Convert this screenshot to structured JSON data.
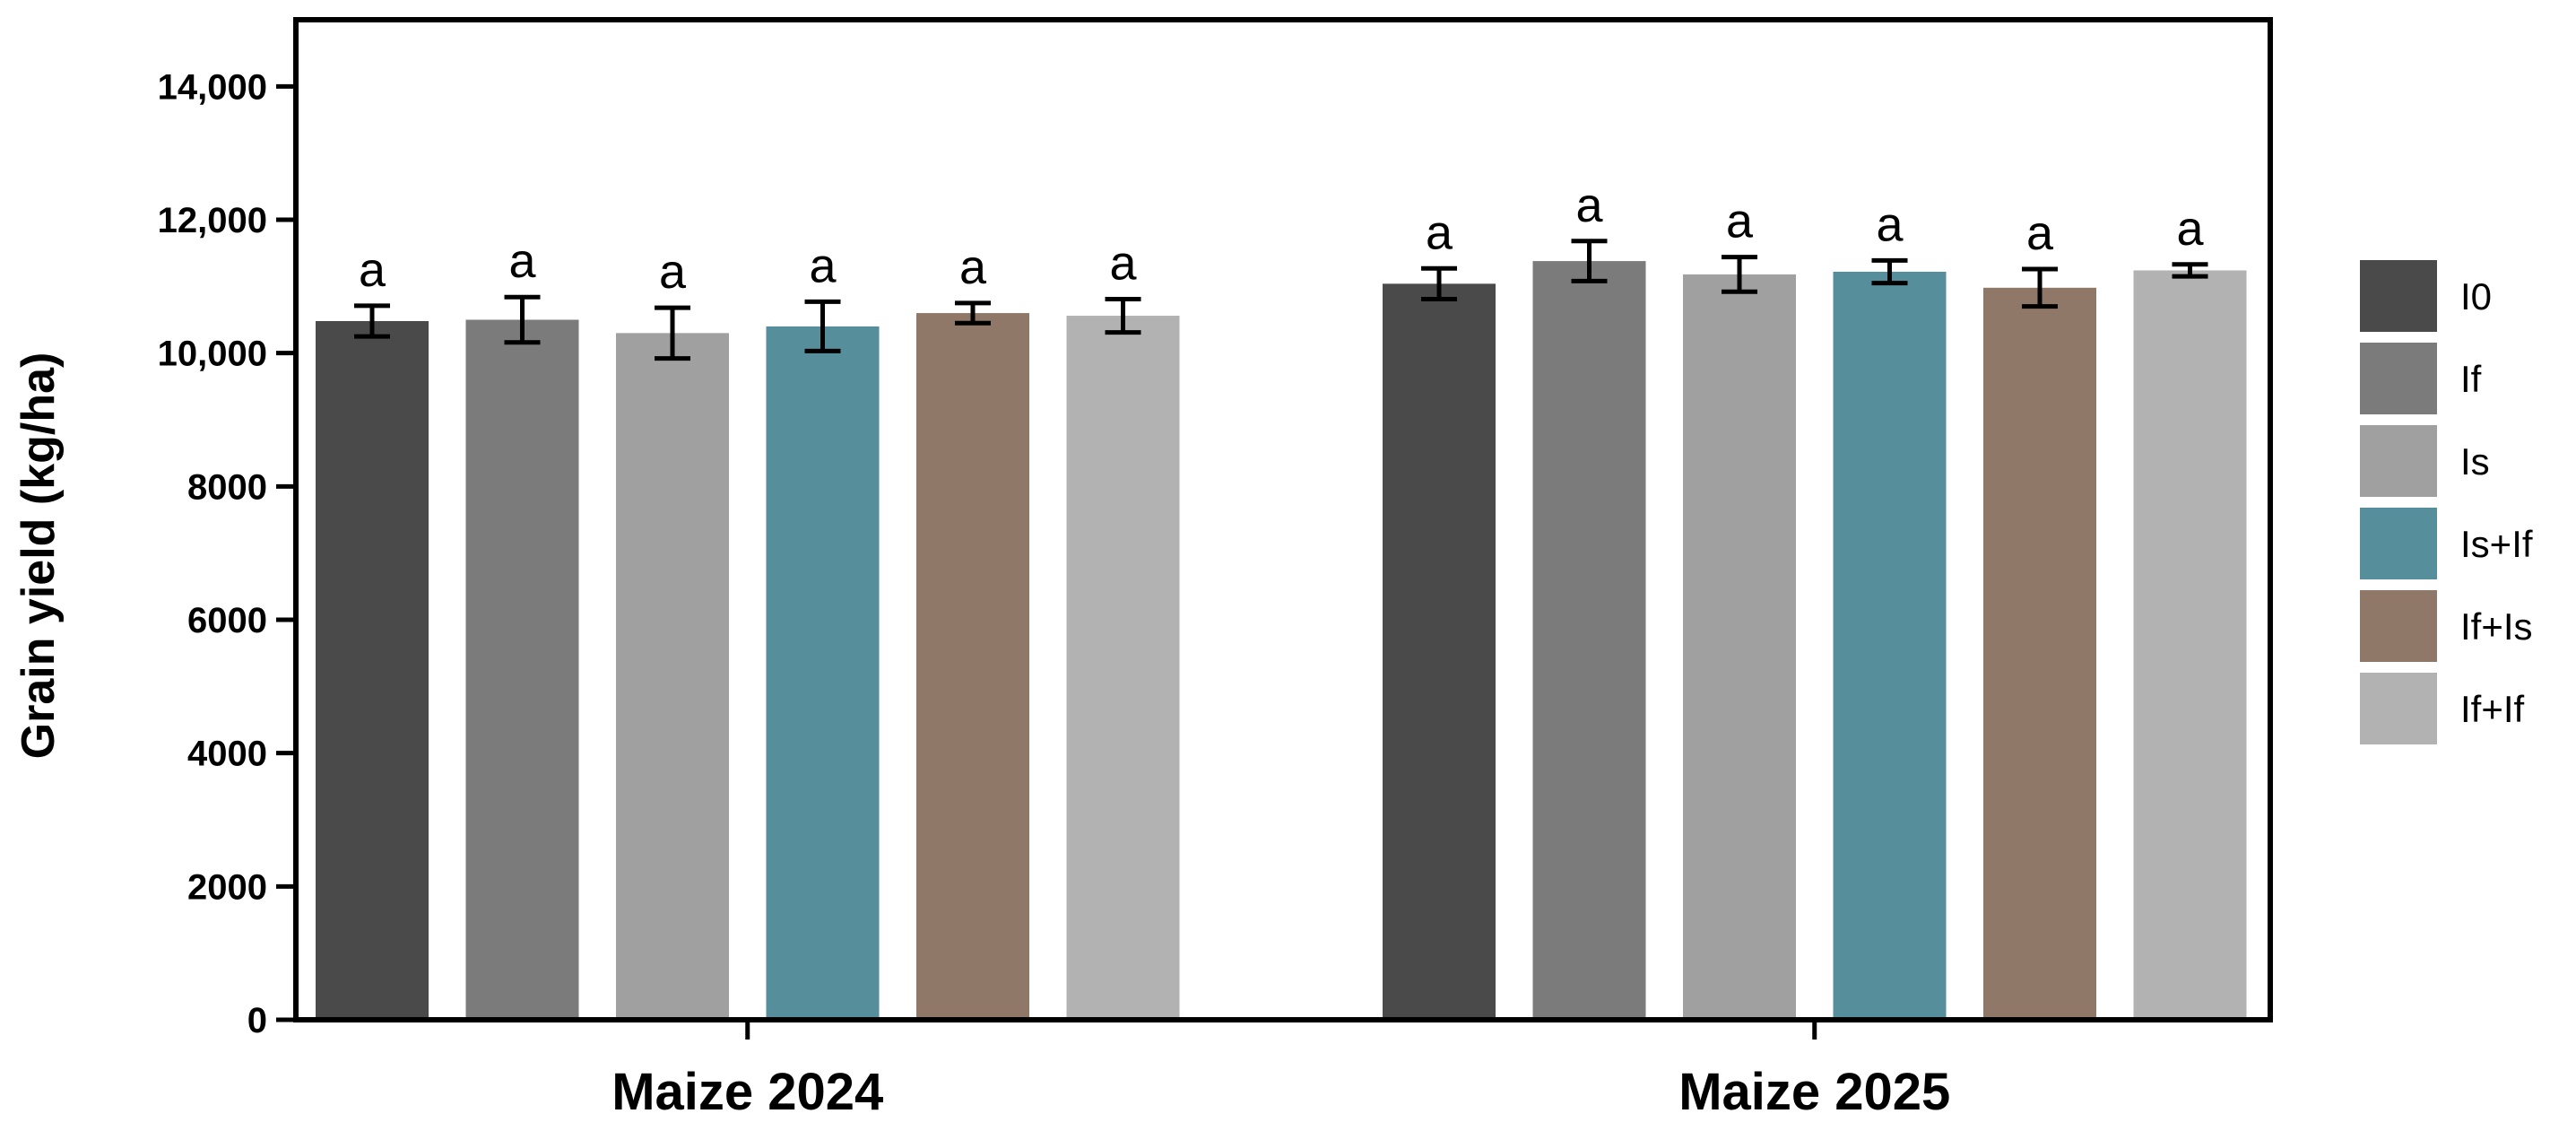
{
  "chart_data": {
    "type": "bar",
    "ylabel": "Grain yield (kg/ha)",
    "xlabel": "",
    "ylim": [
      0,
      15000
    ],
    "yticks": [
      0,
      2000,
      4000,
      6000,
      8000,
      10000,
      12000,
      14000
    ],
    "ytick_labels": [
      "0",
      "2000",
      "4000",
      "6000",
      "8000",
      "10,000",
      "12,000",
      "14,000"
    ],
    "categories": [
      "Maize 2024",
      "Maize 2025"
    ],
    "legend_position": "right",
    "series": [
      {
        "name": "I0",
        "color": "#4a4a4a",
        "values": [
          10480,
          11040
        ],
        "errors": [
          230,
          230
        ],
        "labels": [
          "a",
          "a"
        ]
      },
      {
        "name": "If",
        "color": "#7b7b7b",
        "values": [
          10500,
          11380
        ],
        "errors": [
          340,
          300
        ],
        "labels": [
          "a",
          "a"
        ]
      },
      {
        "name": "Is",
        "color": "#a0a0a0",
        "values": [
          10300,
          11180
        ],
        "errors": [
          380,
          260
        ],
        "labels": [
          "a",
          "a"
        ]
      },
      {
        "name": "Is+If",
        "color": "#568e9b",
        "values": [
          10400,
          11220
        ],
        "errors": [
          370,
          170
        ],
        "labels": [
          "a",
          "a"
        ]
      },
      {
        "name": "If+Is",
        "color": "#8f7868",
        "values": [
          10600,
          10980
        ],
        "errors": [
          150,
          280
        ],
        "labels": [
          "a",
          "a"
        ]
      },
      {
        "name": "If+If",
        "color": "#b2b2b2",
        "values": [
          10560,
          11240
        ],
        "errors": [
          250,
          90
        ],
        "labels": [
          "a",
          "a"
        ]
      }
    ]
  }
}
